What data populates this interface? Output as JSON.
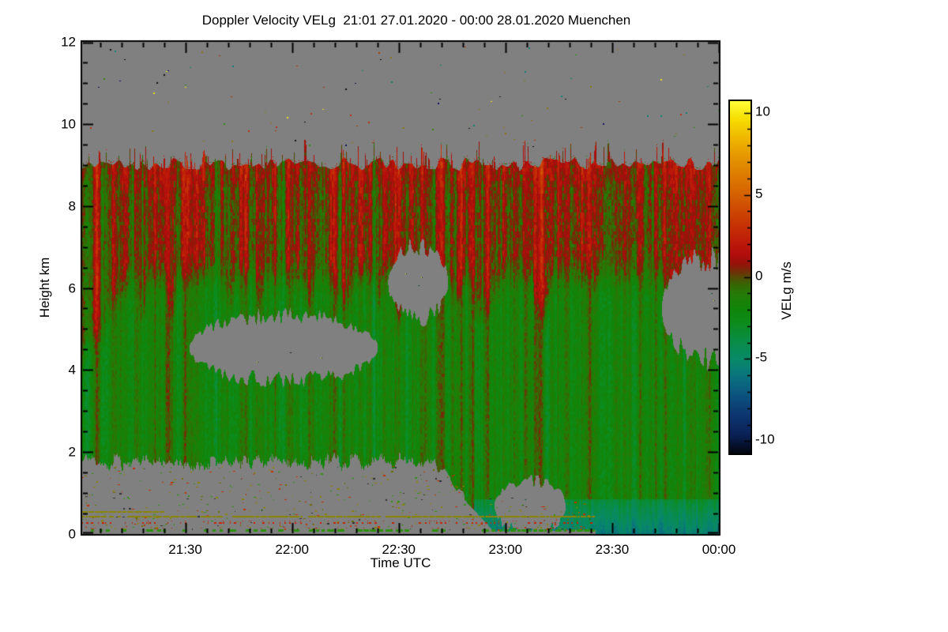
{
  "title": "Doppler Velocity VELg  21:01 27.01.2020 - 00:00 28.01.2020 Muenchen",
  "chart_data": {
    "type": "heatmap",
    "title": "Doppler Velocity VELg  21:01 27.01.2020 - 00:00 28.01.2020 Muenchen",
    "xlabel": "Time UTC",
    "ylabel": "Height km",
    "description": "Time-height Doppler velocity curtain plot (lidar/cloud radar) over Muenchen, 21:01 27.01.2020 to 00:00 28.01.2020. Gray = no data. A cloud/precipitation layer fills ~1.8 km to ~9 km for the whole period (mostly slightly negative velocities, olive-green, with red/orange downdraft streaks between ~6.5 and 9 km and near the start). Cloud base lowers to the ground after ~22:50; bottom-right near-surface values reach about -4 to -5 m/s (teal). Gray data holes occur near 21:40-22:25 at 4-5.4 km, 22:30 at 5.3-7 km, after 23:50 at 4.3-6.9 km, and around 23:05-23:15 below 1.3 km. Thin instrument echo lines cross the lower gray region near 0.44, 0.29 and 0.12 km.",
    "x_start_label": "21:01",
    "x_end_label": "00:00",
    "x_total_minutes": 179,
    "x_minor_step_minutes": 6,
    "x_ticks": [
      {
        "minute": 29,
        "label": "21:30"
      },
      {
        "minute": 59,
        "label": "22:00"
      },
      {
        "minute": 89,
        "label": "22:30"
      },
      {
        "minute": 119,
        "label": "23:00"
      },
      {
        "minute": 149,
        "label": "23:30"
      },
      {
        "minute": 179,
        "label": "00:00"
      }
    ],
    "ylim": [
      0,
      12
    ],
    "y_ticks": [
      0,
      2,
      4,
      6,
      8,
      10,
      12
    ],
    "y_minor_step": 0.5,
    "no_data_color": "#808080",
    "colorbar": {
      "label": "VELg m/s",
      "ticks": [
        10,
        5,
        0,
        -5,
        -10
      ],
      "minor_step": 1,
      "vmin": -10.7,
      "vmax": 10.7,
      "stops": [
        [
          10.7,
          "#ffff38"
        ],
        [
          9.6,
          "#f6dc00"
        ],
        [
          8.4,
          "#eeb400"
        ],
        [
          7.0,
          "#e28e00"
        ],
        [
          5.6,
          "#d96e00"
        ],
        [
          4.4,
          "#d05103"
        ],
        [
          3.2,
          "#c63305"
        ],
        [
          2.2,
          "#bd1c08"
        ],
        [
          1.4,
          "#b20d0d"
        ],
        [
          0.8,
          "#96130a"
        ],
        [
          0.35,
          "#6f2f06"
        ],
        [
          0.0,
          "#544a05"
        ],
        [
          -0.4,
          "#3a6405"
        ],
        [
          -1.0,
          "#257b06"
        ],
        [
          -1.8,
          "#128408"
        ],
        [
          -2.8,
          "#0c8c1c"
        ],
        [
          -3.8,
          "#098c44"
        ],
        [
          -5.0,
          "#088a68"
        ],
        [
          -6.0,
          "#0a747e"
        ],
        [
          -7.2,
          "#0b537e"
        ],
        [
          -8.4,
          "#0d3670"
        ],
        [
          -9.6,
          "#0a2156"
        ],
        [
          -10.7,
          "#020610"
        ]
      ]
    },
    "field": {
      "seed": 7,
      "mean_value": -1.45,
      "streak_amp_low": 1.15,
      "streak_amp_high": 0.85,
      "pixel_jitter": 1.1,
      "red_band_base_km": 6.3,
      "red_gain": 2.2,
      "cloud_top_km": 9.0,
      "cloud_base_km": 1.78,
      "base_drop_start_t": 0.555,
      "base_drop_mid_t": 0.6,
      "base_drop_end_t": 0.645,
      "teal_start_t": 0.615,
      "teal_top_km": 0.85,
      "teal_value": -3.4,
      "ground_gray_end_t": 0.806
    },
    "holes": [
      {
        "cx_t": 0.316,
        "cy_km": 4.55,
        "rx_t": 0.148,
        "ry_km": 0.8
      },
      {
        "cx_t": 0.527,
        "cy_km": 6.15,
        "rx_t": 0.047,
        "ry_km": 0.88
      },
      {
        "cx_t": 1.004,
        "cy_km": 5.5,
        "rx_t": 0.094,
        "ry_km": 1.32
      },
      {
        "cx_t": 0.703,
        "cy_km": 0.68,
        "rx_t": 0.056,
        "ry_km": 0.62
      }
    ],
    "lines": [
      {
        "km": 0.44,
        "t0": 0,
        "t1": 0.806,
        "color": "#8a8404",
        "style": "solid",
        "px": 2
      },
      {
        "km": 0.285,
        "t0": 0,
        "t1": 0.806,
        "color": "#c22404",
        "style": "dotted",
        "px": 2
      },
      {
        "km": 0.115,
        "t0": 0,
        "t1": 0.806,
        "color": "#2f9010",
        "style": "dashed",
        "px": 3
      },
      {
        "km": 0.56,
        "t0": 0,
        "t1": 0.13,
        "color": "#8a8404",
        "style": "solid",
        "px": 2
      }
    ],
    "speckles": {
      "sky_count": 95,
      "lower_count": 540,
      "sky_palette": [
        "#8a7a10",
        "#8a7a10",
        "#b03008",
        "#0a8070",
        "#e8e020",
        "#14145a",
        "#2f8c12",
        "#101010"
      ],
      "lower_palette": [
        "#8a8404",
        "#8a8404",
        "#8a8404",
        "#c23004",
        "#c23004",
        "#2f9010",
        "#2f9010",
        "#6b6b00",
        "#303030"
      ]
    }
  }
}
